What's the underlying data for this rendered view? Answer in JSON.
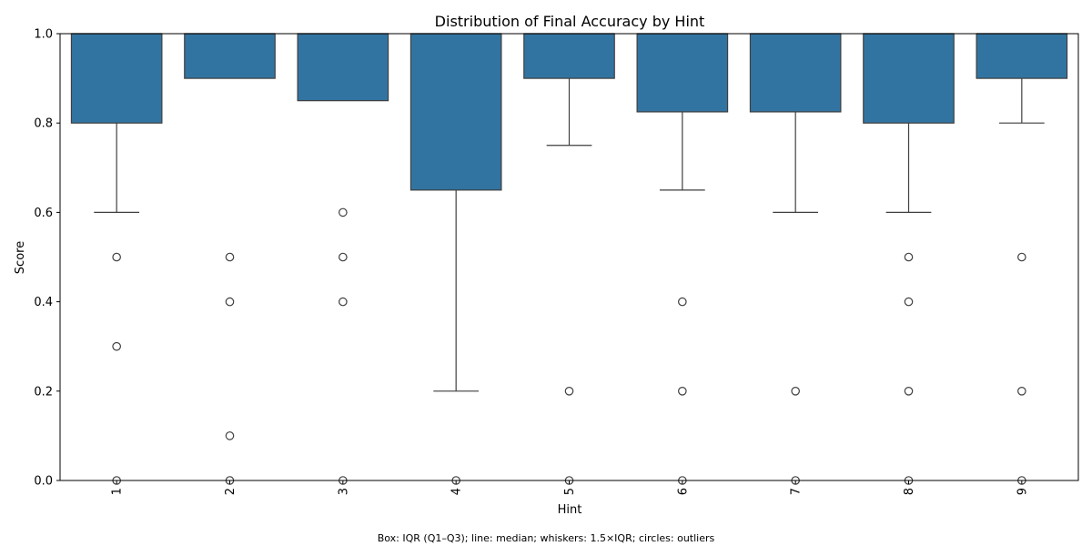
{
  "chart_data": {
    "type": "box",
    "title": "Distribution of Final Accuracy by Hint",
    "xlabel": "Hint",
    "ylabel": "Score",
    "ylim": [
      0,
      1
    ],
    "yticks": [
      "0.0",
      "0.2",
      "0.4",
      "0.6",
      "0.8",
      "1.0"
    ],
    "ytick_values": [
      0,
      0.2,
      0.4,
      0.6,
      0.8,
      1.0
    ],
    "box_color": "#3274a1",
    "edge_color": "#3f3f3f",
    "grid": false,
    "groups": [
      {
        "category": "1",
        "q1": 0.8,
        "median": 1.0,
        "q3": 1.0,
        "whisker_low": 0.6,
        "whisker_high": 1.0,
        "outliers": [
          0.5,
          0.3,
          0.0
        ]
      },
      {
        "category": "2",
        "q1": 0.9,
        "median": 1.0,
        "q3": 1.0,
        "whisker_low": 0.9,
        "whisker_high": 1.0,
        "outliers": [
          0.5,
          0.4,
          0.1,
          0.0
        ]
      },
      {
        "category": "3",
        "q1": 0.85,
        "median": 1.0,
        "q3": 1.0,
        "whisker_low": 0.85,
        "whisker_high": 1.0,
        "outliers": [
          0.6,
          0.5,
          0.4,
          0.0
        ]
      },
      {
        "category": "4",
        "q1": 0.65,
        "median": 1.0,
        "q3": 1.0,
        "whisker_low": 0.2,
        "whisker_high": 1.0,
        "outliers": [
          0.0
        ]
      },
      {
        "category": "5",
        "q1": 0.9,
        "median": 1.0,
        "q3": 1.0,
        "whisker_low": 0.75,
        "whisker_high": 1.0,
        "outliers": [
          0.2,
          0.0
        ]
      },
      {
        "category": "6",
        "q1": 0.825,
        "median": 1.0,
        "q3": 1.0,
        "whisker_low": 0.65,
        "whisker_high": 1.0,
        "outliers": [
          0.4,
          0.2,
          0.0
        ]
      },
      {
        "category": "7",
        "q1": 0.825,
        "median": 1.0,
        "q3": 1.0,
        "whisker_low": 0.6,
        "whisker_high": 1.0,
        "outliers": [
          0.2,
          0.0
        ]
      },
      {
        "category": "8",
        "q1": 0.8,
        "median": 1.0,
        "q3": 1.0,
        "whisker_low": 0.6,
        "whisker_high": 1.0,
        "outliers": [
          0.5,
          0.4,
          0.2,
          0.0
        ]
      },
      {
        "category": "9",
        "q1": 0.9,
        "median": 1.0,
        "q3": 1.0,
        "whisker_low": 0.8,
        "whisker_high": 1.0,
        "outliers": [
          0.5,
          0.2,
          0.0
        ]
      }
    ],
    "footnote": "Box: IQR (Q1–Q3); line: median; whiskers: 1.5×IQR; circles: outliers"
  }
}
